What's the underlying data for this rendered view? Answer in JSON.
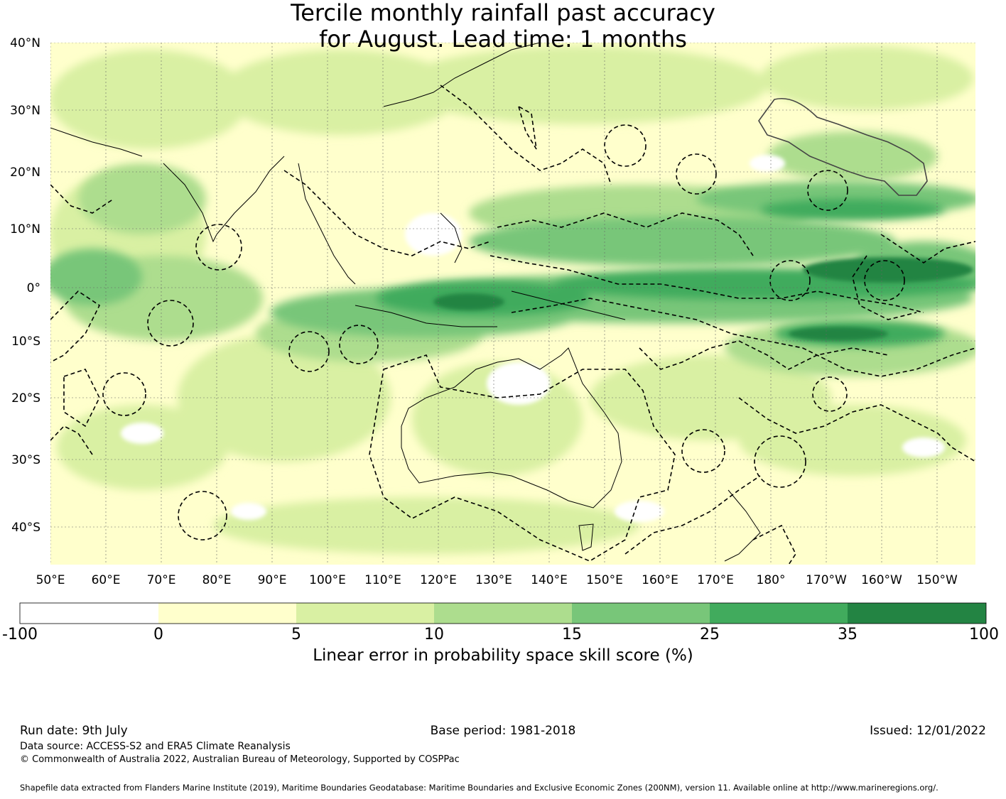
{
  "title": {
    "line1": "Tercile monthly rainfall past accuracy",
    "line2": "for August. Lead time: 1 months"
  },
  "map": {
    "lat_labels": [
      "40°N",
      "30°N",
      "20°N",
      "10°N",
      "0°",
      "10°S",
      "20°S",
      "30°S",
      "40°S"
    ],
    "lon_labels": [
      "50°E",
      "60°E",
      "70°E",
      "80°E",
      "90°E",
      "100°E",
      "110°E",
      "120°E",
      "130°E",
      "140°E",
      "150°E",
      "160°E",
      "170°E",
      "180°",
      "170°W",
      "160°W",
      "150°W"
    ]
  },
  "colorbar": {
    "ticks": [
      "-100",
      "0",
      "5",
      "10",
      "15",
      "25",
      "35",
      "100"
    ],
    "colors": [
      "#ffffff",
      "#ffffcc",
      "#d9f0a3",
      "#addd8e",
      "#78c679",
      "#41ab5d",
      "#238443"
    ],
    "label": "Linear error in probability space skill score (%)"
  },
  "footer": {
    "run_date": "Run date: 9th July",
    "base_period": "Base period: 1981-2018",
    "issued": "Issued: 12/01/2022",
    "data_source": "Data source: ACCESS-S2 and ERA5 Climate Reanalysis",
    "copyright": "© Commonwealth of Australia 2022, Australian Bureau of Meteorology, Supported by COSPPac",
    "shapefile": "Shapefile data extracted from Flanders Marine Institute (2019), Maritime Boundaries Geodatabase: Maritime Boundaries and Exclusive Economic Zones (200NM), version 11. Available online at http://www.marineregions.org/."
  }
}
